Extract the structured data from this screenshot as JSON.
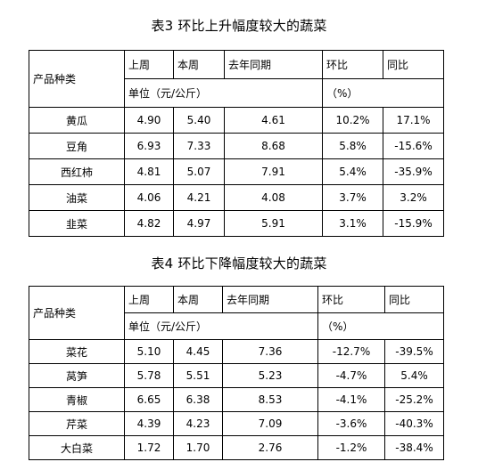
{
  "table3": {
    "title": "表3 环比上升幅度较大的蔬菜",
    "row_header": "产品种类",
    "col_prev_week": "上周",
    "col_this_week": "本周",
    "col_last_year": "去年同期",
    "col_mom": "环比",
    "col_yoy": "同比",
    "unit_label": "单位（元/公斤）",
    "pct_label": "（%）",
    "rows": [
      {
        "name": "黄瓜",
        "prev": "4.90",
        "this": "5.40",
        "last_year": "4.61",
        "mom": "10.2%",
        "yoy": "17.1%"
      },
      {
        "name": "豆角",
        "prev": "6.93",
        "this": "7.33",
        "last_year": "8.68",
        "mom": "5.8%",
        "yoy": "-15.6%"
      },
      {
        "name": "西红柿",
        "prev": "4.81",
        "this": "5.07",
        "last_year": "7.91",
        "mom": "5.4%",
        "yoy": "-35.9%"
      },
      {
        "name": "油菜",
        "prev": "4.06",
        "this": "4.21",
        "last_year": "4.08",
        "mom": "3.7%",
        "yoy": "3.2%"
      },
      {
        "name": "韭菜",
        "prev": "4.82",
        "this": "4.97",
        "last_year": "5.91",
        "mom": "3.1%",
        "yoy": "-15.9%"
      }
    ]
  },
  "table4": {
    "title": "表4 环比下降幅度较大的蔬菜",
    "row_header": "产品种类",
    "col_prev_week": "上周",
    "col_this_week": "本周",
    "col_last_year": "去年同期",
    "col_mom": "环比",
    "col_yoy": "同比",
    "unit_label": "单位（元/公斤）",
    "pct_label": "（%）",
    "rows": [
      {
        "name": "菜花",
        "prev": "5.10",
        "this": "4.45",
        "last_year": "7.36",
        "mom": "-12.7%",
        "yoy": "-39.5%"
      },
      {
        "name": "莴笋",
        "prev": "5.78",
        "this": "5.51",
        "last_year": "5.23",
        "mom": "-4.7%",
        "yoy": "5.4%"
      },
      {
        "name": "青椒",
        "prev": "6.65",
        "this": "6.38",
        "last_year": "8.53",
        "mom": "-4.1%",
        "yoy": "-25.2%"
      },
      {
        "name": "芹菜",
        "prev": "4.39",
        "this": "4.23",
        "last_year": "7.09",
        "mom": "-3.6%",
        "yoy": "-40.3%"
      },
      {
        "name": "大白菜",
        "prev": "1.72",
        "this": "1.70",
        "last_year": "2.76",
        "mom": "-1.2%",
        "yoy": "-38.4%"
      }
    ]
  }
}
